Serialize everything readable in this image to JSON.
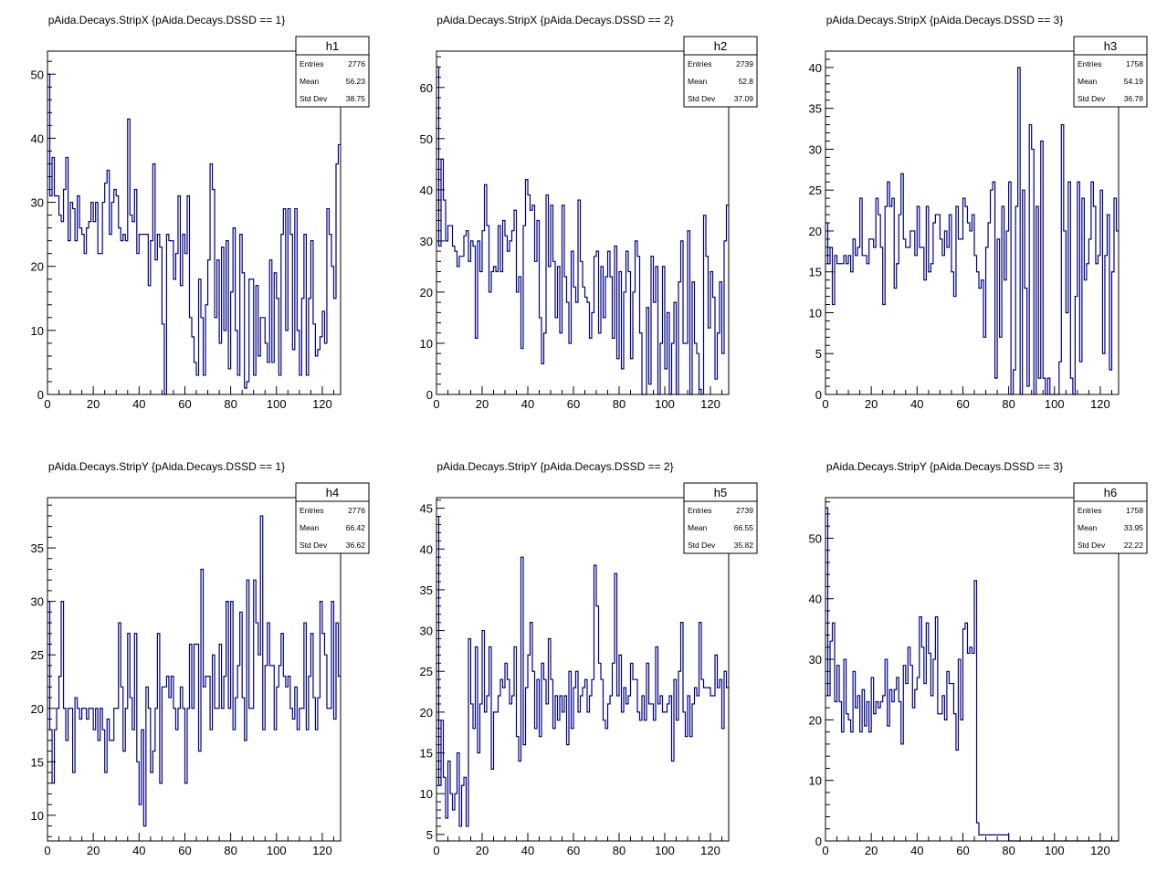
{
  "line_color": "#000080",
  "chart_data": [
    {
      "type": "histogram",
      "title": "pAida.Decays.StripX {pAida.Decays.DSSD == 1}",
      "stats": {
        "name": "h1",
        "rows": [
          {
            "label": "Entries",
            "value": "2776"
          },
          {
            "label": "Mean",
            "value": "56.23"
          },
          {
            "label": "Std Dev",
            "value": "38.75"
          }
        ]
      },
      "xlim": [
        0,
        128
      ],
      "ylim": [
        0,
        53.6
      ],
      "xticks": [
        0,
        20,
        40,
        60,
        80,
        100,
        120
      ],
      "yticks": [
        0,
        10,
        20,
        30,
        40,
        50
      ],
      "values": [
        50,
        31,
        37,
        31,
        31,
        28,
        27,
        32,
        37,
        24,
        30,
        29,
        24,
        31,
        26,
        25,
        22,
        26,
        27,
        30,
        27,
        30,
        22,
        22,
        30,
        33,
        35,
        25,
        30,
        32,
        31,
        26,
        24,
        25,
        24,
        43,
        28,
        27,
        32,
        22,
        25,
        25,
        25,
        25,
        17,
        24,
        36,
        21,
        25,
        23,
        11,
        0,
        25,
        24,
        24,
        18,
        22,
        31,
        17,
        25,
        22,
        31,
        12,
        9,
        5,
        3,
        18,
        12,
        3,
        14,
        21,
        36,
        32,
        12,
        21,
        8,
        23,
        10,
        24,
        4,
        16,
        26,
        10,
        3,
        25,
        19,
        1,
        2,
        18,
        18,
        3,
        17,
        6,
        12,
        12,
        8,
        5,
        21,
        5,
        19,
        15,
        3,
        25,
        29,
        10,
        29,
        25,
        7,
        29,
        10,
        3,
        15,
        25,
        3,
        15,
        24,
        11,
        6,
        7,
        9,
        13,
        8,
        29,
        25,
        20,
        15,
        36,
        39
      ]
    },
    {
      "type": "histogram",
      "title": "pAida.Decays.StripX {pAida.Decays.DSSD == 2}",
      "stats": {
        "name": "h2",
        "rows": [
          {
            "label": "Entries",
            "value": "2739"
          },
          {
            "label": "Mean",
            "value": "52.8"
          },
          {
            "label": "Std Dev",
            "value": "37.09"
          }
        ]
      },
      "xlim": [
        0,
        128
      ],
      "ylim": [
        0,
        67.1
      ],
      "xticks": [
        0,
        20,
        40,
        60,
        80,
        100,
        120
      ],
      "yticks": [
        0,
        10,
        20,
        30,
        40,
        50,
        60
      ],
      "values": [
        64,
        29,
        46,
        38,
        30,
        33,
        33,
        29,
        28,
        25,
        27,
        27,
        31,
        32,
        26,
        30,
        29,
        11,
        30,
        24,
        32,
        41,
        33,
        20,
        24,
        25,
        24,
        33,
        24,
        34,
        31,
        28,
        30,
        32,
        36,
        20,
        23,
        9,
        33,
        42,
        39,
        36,
        37,
        26,
        34,
        15,
        6,
        12,
        39,
        25,
        37,
        26,
        15,
        25,
        12,
        37,
        23,
        18,
        10,
        28,
        21,
        18,
        38,
        26,
        21,
        19,
        18,
        11,
        16,
        27,
        28,
        12,
        25,
        15,
        23,
        28,
        23,
        11,
        29,
        7,
        24,
        5,
        20,
        28,
        24,
        7,
        20,
        30,
        27,
        12,
        0,
        0,
        17,
        2,
        27,
        18,
        25,
        0,
        10,
        25,
        5,
        16,
        0,
        10,
        18,
        0,
        22,
        30,
        10,
        10,
        32,
        0,
        22,
        10,
        8,
        1,
        0,
        35,
        27,
        13,
        24,
        19,
        3,
        12,
        22,
        8,
        30,
        37
      ]
    },
    {
      "type": "histogram",
      "title": "pAida.Decays.StripX {pAida.Decays.DSSD == 3}",
      "stats": {
        "name": "h3",
        "rows": [
          {
            "label": "Entries",
            "value": "1758"
          },
          {
            "label": "Mean",
            "value": "54.19"
          },
          {
            "label": "Std Dev",
            "value": "36.78"
          }
        ]
      },
      "xlim": [
        0,
        128
      ],
      "ylim": [
        0,
        42
      ],
      "xticks": [
        0,
        20,
        40,
        60,
        80,
        100,
        120
      ],
      "yticks": [
        0,
        5,
        10,
        15,
        20,
        25,
        30,
        35,
        40
      ],
      "values": [
        21,
        16,
        18,
        11,
        17,
        16,
        16,
        16,
        17,
        16,
        17,
        15,
        19,
        17,
        18,
        24,
        17,
        17,
        16,
        19,
        19,
        18,
        24,
        22,
        18,
        11,
        23,
        26,
        23,
        24,
        13,
        16,
        22,
        27,
        19,
        18,
        18,
        20,
        20,
        17,
        23,
        18,
        18,
        14,
        23,
        15,
        16,
        21,
        22,
        22,
        19,
        17,
        20,
        18,
        22,
        15,
        12,
        23,
        19,
        19,
        24,
        23,
        21,
        20,
        22,
        17,
        15,
        13,
        14,
        7,
        18,
        21,
        25,
        26,
        2,
        19,
        7,
        23,
        14,
        20,
        26,
        0,
        3,
        23,
        40,
        0,
        25,
        13,
        1,
        33,
        30,
        0,
        23,
        2,
        31,
        2,
        0,
        2,
        0,
        0,
        0,
        0,
        4,
        33,
        20,
        10,
        26,
        2,
        0,
        12,
        26,
        4,
        24,
        14,
        16,
        19,
        26,
        23,
        16,
        17,
        25,
        5,
        17,
        22,
        3,
        15,
        24,
        20
      ]
    },
    {
      "type": "histogram",
      "title": "pAida.Decays.StripY {pAida.Decays.DSSD == 1}",
      "stats": {
        "name": "h4",
        "rows": [
          {
            "label": "Entries",
            "value": "2776"
          },
          {
            "label": "Mean",
            "value": "66.42"
          },
          {
            "label": "Std Dev",
            "value": "36.62"
          }
        ]
      },
      "xlim": [
        0,
        128
      ],
      "ylim": [
        7.6,
        39.7
      ],
      "xticks": [
        0,
        20,
        40,
        60,
        80,
        100,
        120
      ],
      "yticks": [
        10,
        15,
        20,
        25,
        30,
        35
      ],
      "values": [
        30,
        18,
        13,
        18,
        20,
        23,
        30,
        20,
        17,
        20,
        20,
        14,
        21,
        20,
        19,
        20,
        20,
        19,
        20,
        20,
        18,
        20,
        17,
        20,
        18,
        14,
        19,
        17,
        17,
        20,
        20,
        28,
        22,
        16,
        20,
        27,
        21,
        18,
        27,
        15,
        11,
        18,
        9,
        22,
        20,
        14,
        16,
        20,
        27,
        13,
        22,
        22,
        23,
        21,
        23,
        20,
        18,
        20,
        22,
        20,
        13,
        20,
        26,
        20,
        26,
        26,
        16,
        33,
        22,
        23,
        23,
        18,
        25,
        20,
        20,
        26,
        20,
        23,
        30,
        20,
        30,
        18,
        21,
        24,
        29,
        21,
        17,
        32,
        20,
        20,
        32,
        28,
        25,
        38,
        18,
        24,
        28,
        24,
        24,
        18,
        22,
        24,
        27,
        23,
        22,
        23,
        20,
        19,
        22,
        18,
        20,
        20,
        28,
        18,
        23,
        27,
        21,
        18,
        21,
        30,
        27,
        25,
        20,
        20,
        30,
        19,
        28,
        23
      ]
    },
    {
      "type": "histogram",
      "title": "pAida.Decays.StripY {pAida.Decays.DSSD == 2}",
      "stats": {
        "name": "h5",
        "rows": [
          {
            "label": "Entries",
            "value": "2739"
          },
          {
            "label": "Mean",
            "value": "66.55"
          },
          {
            "label": "Std Dev",
            "value": "35.82"
          }
        ]
      },
      "xlim": [
        0,
        128
      ],
      "ylim": [
        4.2,
        46.3
      ],
      "xticks": [
        0,
        20,
        40,
        60,
        80,
        100,
        120
      ],
      "yticks": [
        5,
        10,
        15,
        20,
        25,
        30,
        35,
        40,
        45
      ],
      "values": [
        44,
        11,
        19,
        12,
        7,
        14,
        10,
        8,
        10,
        15,
        6,
        11,
        12,
        6,
        29,
        21,
        18,
        28,
        15,
        21,
        30,
        20,
        22,
        28,
        13,
        20,
        20,
        22,
        24,
        23,
        26,
        24,
        21,
        22,
        28,
        17,
        14,
        39,
        16,
        23,
        27,
        31,
        25,
        18,
        24,
        17,
        26,
        24,
        21,
        29,
        24,
        18,
        22,
        19,
        22,
        20,
        22,
        16,
        25,
        18,
        23,
        25,
        20,
        22,
        23,
        24,
        20,
        22,
        24,
        38,
        33,
        26,
        24,
        19,
        18,
        21,
        22,
        26,
        37,
        22,
        27,
        20,
        23,
        21,
        22,
        26,
        24,
        24,
        20,
        19,
        22,
        19,
        26,
        21,
        21,
        19,
        28,
        21,
        22,
        20,
        20,
        21,
        22,
        14,
        24,
        19,
        25,
        31,
        20,
        17,
        22,
        17,
        21,
        23,
        22,
        31,
        24,
        23,
        23,
        23,
        22,
        22,
        27,
        23,
        24,
        18,
        25,
        23
      ]
    },
    {
      "type": "histogram",
      "title": "pAida.Decays.StripY {pAida.Decays.DSSD == 3}",
      "stats": {
        "name": "h6",
        "rows": [
          {
            "label": "Entries",
            "value": "1758"
          },
          {
            "label": "Mean",
            "value": "33.95"
          },
          {
            "label": "Std Dev",
            "value": "22.22"
          }
        ]
      },
      "xlim": [
        0,
        128
      ],
      "ylim": [
        0,
        56.7
      ],
      "xticks": [
        0,
        20,
        40,
        60,
        80,
        100,
        120
      ],
      "yticks": [
        0,
        10,
        20,
        30,
        40,
        50
      ],
      "values": [
        55,
        24,
        33,
        36,
        23,
        29,
        23,
        18,
        30,
        21,
        20,
        18,
        28,
        22,
        24,
        18,
        25,
        19,
        23,
        18,
        27,
        21,
        23,
        22,
        23,
        24,
        30,
        19,
        25,
        23,
        25,
        27,
        23,
        16,
        29,
        26,
        32,
        29,
        22,
        25,
        27,
        37,
        32,
        26,
        36,
        31,
        24,
        30,
        37,
        21,
        21,
        24,
        20,
        28,
        26,
        26,
        21,
        15,
        30,
        20,
        35,
        36,
        31,
        32,
        31,
        43,
        3,
        1,
        1,
        1,
        1,
        1,
        1,
        1,
        1,
        1,
        1,
        1,
        1,
        1,
        0,
        0,
        0,
        0,
        0,
        0,
        0,
        0,
        0,
        0,
        0,
        0,
        0,
        0,
        0,
        0,
        0,
        0,
        0,
        0,
        0,
        0,
        0,
        0,
        0,
        0,
        0,
        0,
        0,
        0,
        0,
        0,
        0,
        0,
        0,
        0,
        0,
        0,
        0,
        0,
        0,
        0,
        0,
        0,
        0,
        0,
        0,
        0
      ]
    }
  ]
}
